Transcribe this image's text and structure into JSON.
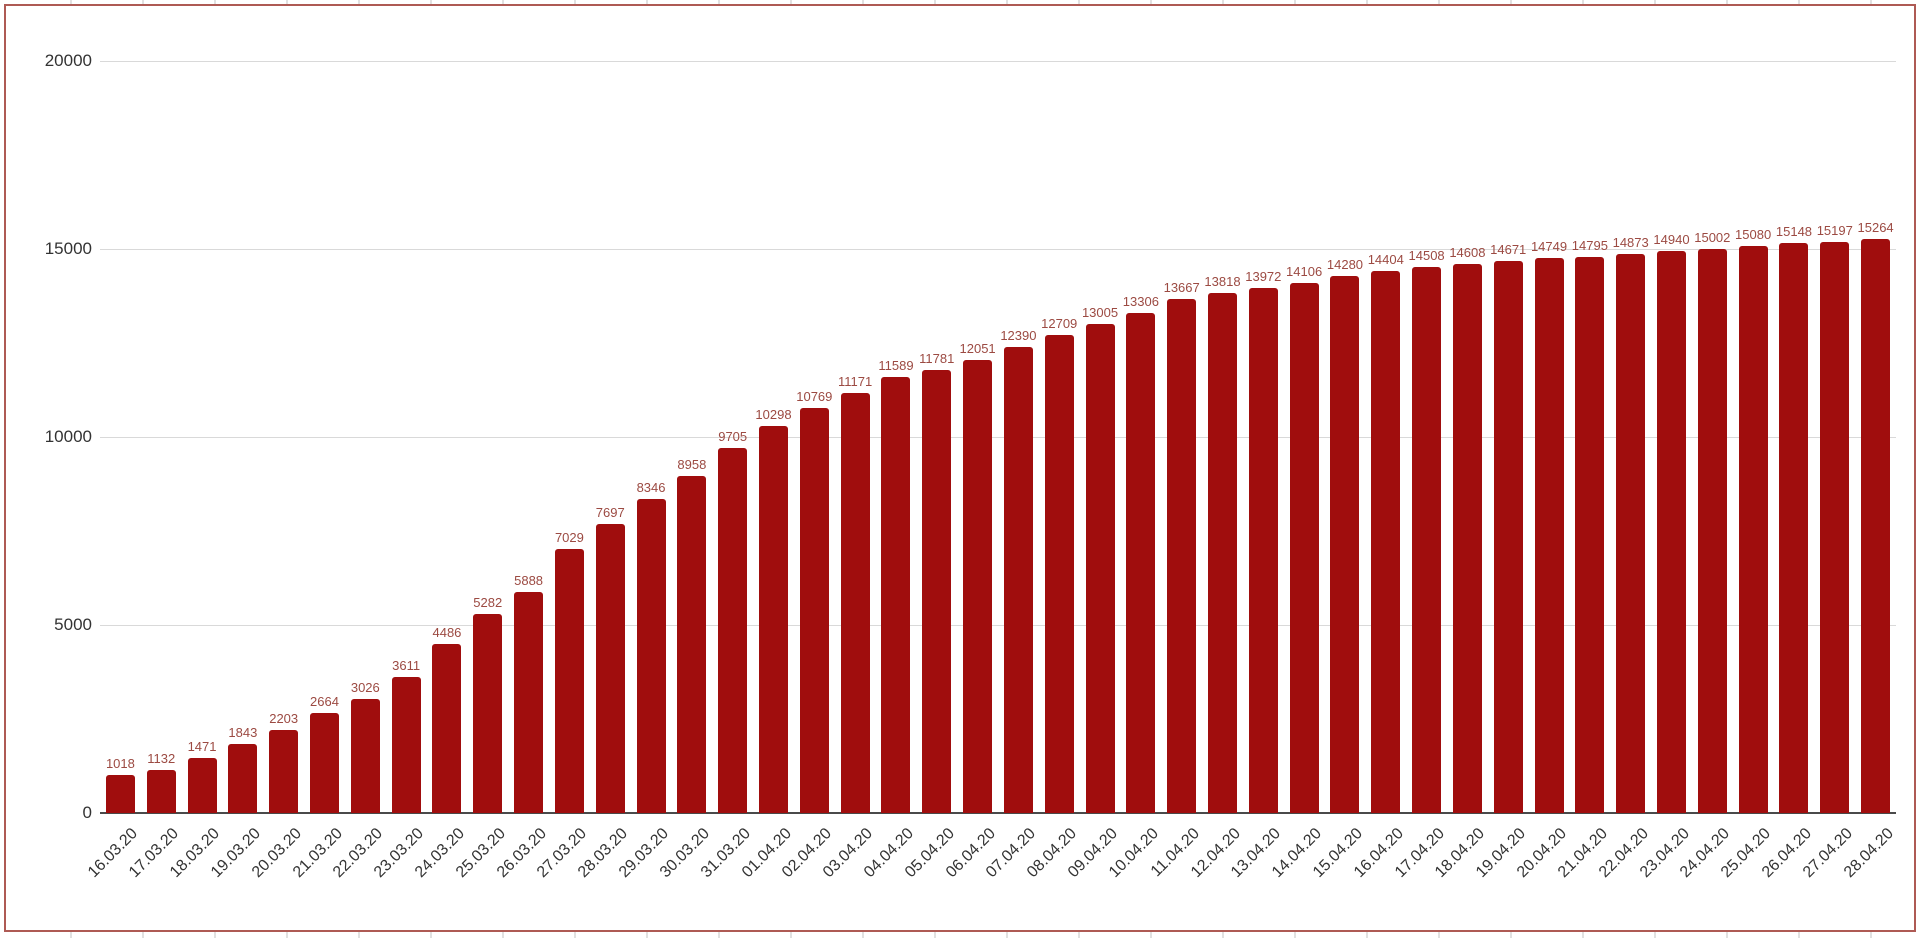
{
  "chart": {
    "bar_color": "#a00d0d",
    "value_label_color": "#9c4a42",
    "axis_label_color": "#333333",
    "gridline_color": "#d9d9d9",
    "baseline_color": "#4a4a4a",
    "frame_border_color": "#ae5a54",
    "background_color": "#ffffff"
  },
  "chart_data": {
    "type": "bar",
    "title": "",
    "xlabel": "",
    "ylabel": "",
    "ylim": [
      0,
      20000
    ],
    "grid": true,
    "legend": "none",
    "y_ticks": [
      0,
      5000,
      10000,
      15000,
      20000
    ],
    "categories": [
      "16.03.20",
      "17.03.20",
      "18.03.20",
      "19.03.20",
      "20.03.20",
      "21.03.20",
      "22.03.20",
      "23.03.20",
      "24.03.20",
      "25.03.20",
      "26.03.20",
      "27.03.20",
      "28.03.20",
      "29.03.20",
      "30.03.20",
      "31.03.20",
      "01.04.20",
      "02.04.20",
      "03.04.20",
      "04.04.20",
      "05.04.20",
      "06.04.20",
      "07.04.20",
      "08.04.20",
      "09.04.20",
      "10.04.20",
      "11.04.20",
      "12.04.20",
      "13.04.20",
      "14.04.20",
      "15.04.20",
      "16.04.20",
      "17.04.20",
      "18.04.20",
      "19.04.20",
      "20.04.20",
      "21.04.20",
      "22.04.20",
      "23.04.20",
      "24.04.20",
      "25.04.20",
      "26.04.20",
      "27.04.20",
      "28.04.20"
    ],
    "values": [
      1018,
      1132,
      1471,
      1843,
      2203,
      2664,
      3026,
      3611,
      4486,
      5282,
      5888,
      7029,
      7697,
      8346,
      8958,
      9705,
      10298,
      10769,
      11171,
      11589,
      11781,
      12051,
      12390,
      12709,
      13005,
      13306,
      13667,
      13818,
      13972,
      14106,
      14280,
      14404,
      14508,
      14608,
      14671,
      14749,
      14795,
      14873,
      14940,
      15002,
      15080,
      15148,
      15197,
      15264
    ],
    "data_labels_visible": true
  },
  "layout_note": ""
}
